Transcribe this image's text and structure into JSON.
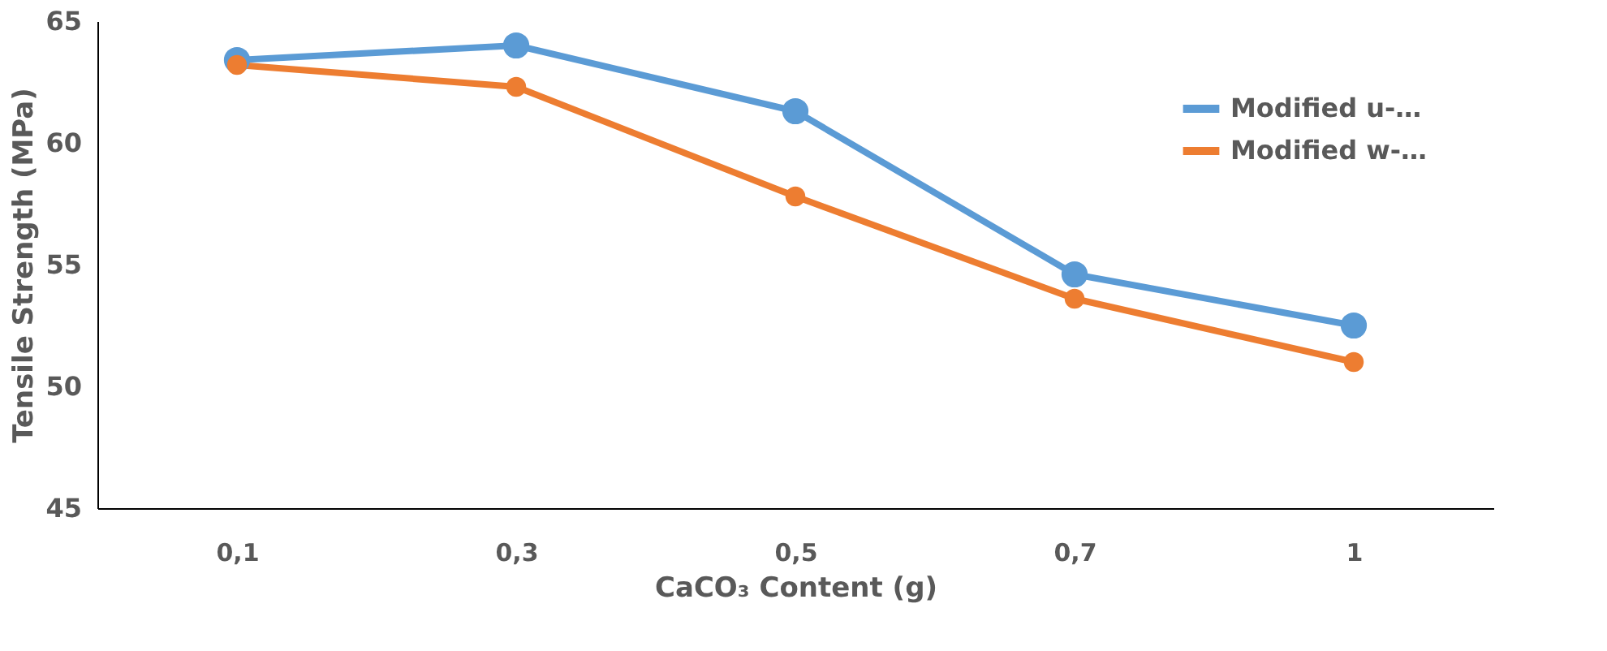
{
  "chart_data": {
    "type": "line",
    "xlabel": "CaCO₃ Content (g)",
    "ylabel": "Tensile Strength (MPa)",
    "categories": [
      "0,1",
      "0,3",
      "0,5",
      "0,7",
      "1"
    ],
    "series": [
      {
        "name": "Modified u-…",
        "color": "#5b9bd5",
        "values": [
          63.4,
          64.0,
          61.3,
          54.6,
          52.5
        ]
      },
      {
        "name": "Modified w-…",
        "color": "#ed7d31",
        "values": [
          63.2,
          62.3,
          57.8,
          53.6,
          51.0
        ]
      }
    ],
    "ylim": [
      45,
      65
    ],
    "yticks": [
      45,
      50,
      55,
      60,
      65
    ],
    "grid": false,
    "legend": "top right",
    "marker": "circle",
    "line_style": "solid"
  }
}
